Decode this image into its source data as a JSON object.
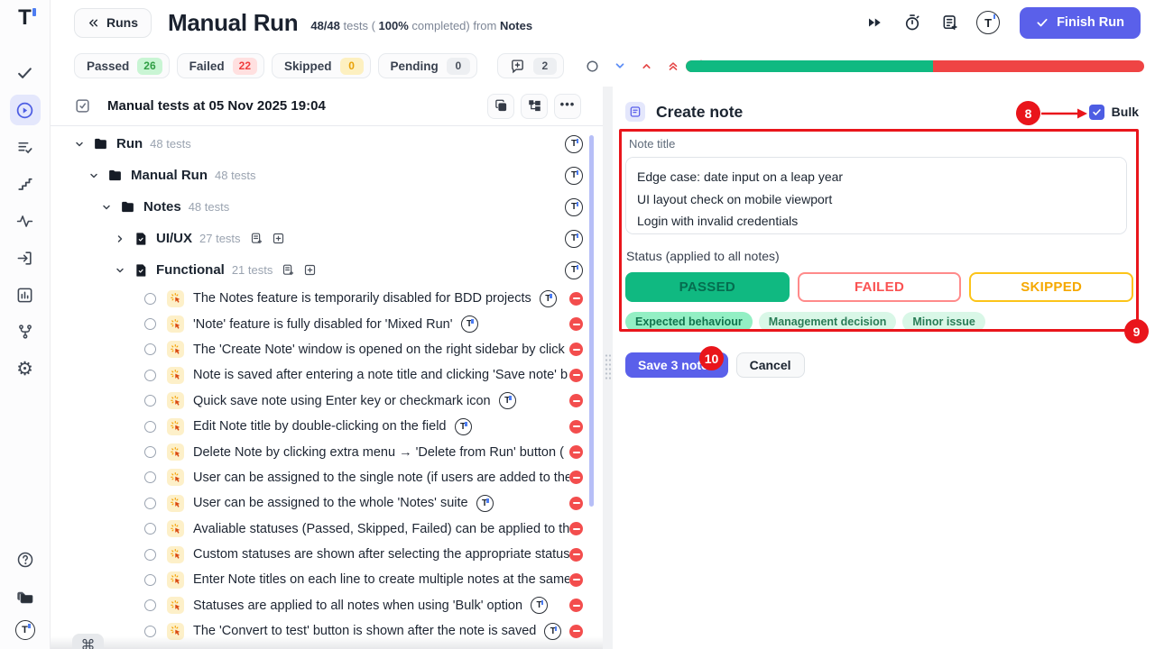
{
  "colors": {
    "accent": "#5a60ea",
    "passed_green": "#10b981",
    "failed_red": "#ef4444",
    "annotation_red": "#e9151b"
  },
  "header": {
    "back_label": "Runs",
    "title": "Manual Run",
    "stats": {
      "count": "48/48",
      "tests_word": "tests (",
      "percent": "100%",
      "completed_word": "completed) from",
      "source": "Notes"
    },
    "finish_label": "Finish Run"
  },
  "filters": [
    {
      "label": "Passed",
      "count": "26",
      "kind": "passed"
    },
    {
      "label": "Failed",
      "count": "22",
      "kind": "failed"
    },
    {
      "label": "Skipped",
      "count": "0",
      "kind": "skipped"
    },
    {
      "label": "Pending",
      "count": "0",
      "kind": "pending"
    }
  ],
  "comment_count": "2",
  "progress": {
    "passed_percent": 54,
    "failed_percent": 46
  },
  "tree": {
    "title": "Manual tests at 05 Nov 2025 19:04",
    "suites": {
      "run": {
        "label": "Run",
        "count": "48 tests"
      },
      "manual_run": {
        "label": "Manual Run",
        "count": "48 tests"
      },
      "notes": {
        "label": "Notes",
        "count": "48 tests"
      },
      "uiux": {
        "label": "UI/UX",
        "count": "27 tests"
      },
      "functional": {
        "label": "Functional",
        "count": "21 tests"
      }
    },
    "tests": [
      {
        "label": "The Notes feature is temporarily disabled for BDD projects",
        "logo": true
      },
      {
        "label": "'Note' feature is fully disabled for 'Mixed Run'",
        "logo": true
      },
      {
        "label": "The 'Create Note' window is opened on the right sidebar by click",
        "logo": false
      },
      {
        "label": "Note is saved after entering a note title and clicking 'Save note' b",
        "logo": false
      },
      {
        "label": "Quick save note using Enter key or checkmark icon",
        "logo": true
      },
      {
        "label": "Edit Note title by double-clicking on the field",
        "logo": true
      },
      {
        "label": "Delete Note by clicking extra menu → 'Delete from Run' button  (",
        "logo": false
      },
      {
        "label": "User can be assigned to the single note (if users are added to the",
        "logo": false
      },
      {
        "label": "User can be assigned to the whole 'Notes' suite",
        "logo": true
      },
      {
        "label": "Avaliable statuses (Passed, Skipped, Failed) can be applied to the",
        "logo": false
      },
      {
        "label": "Custom statuses are shown after selecting the appropriate status",
        "logo": false
      },
      {
        "label": "Enter Note titles on each line to create multiple notes at the same",
        "logo": false
      },
      {
        "label": "Statuses are applied to all notes when using 'Bulk' option",
        "logo": true
      },
      {
        "label": "The 'Convert to test' button is shown after the note is saved",
        "logo": true
      }
    ]
  },
  "note_panel": {
    "title": "Create note",
    "bulk_label": "Bulk",
    "note_title_label": "Note title",
    "note_text": "Edge case: date input on a leap year\nUI layout check on mobile viewport\nLogin with invalid credentials",
    "status_label": "Status (applied to all notes)",
    "statuses": [
      {
        "label": "PASSED",
        "kind": "passed"
      },
      {
        "label": "FAILED",
        "kind": "failed"
      },
      {
        "label": "SKIPPED",
        "kind": "skipped"
      }
    ],
    "tags": [
      {
        "label": "Expected behaviour",
        "kind": "strong"
      },
      {
        "label": "Management decision",
        "kind": "light"
      },
      {
        "label": "Minor issue",
        "kind": "light"
      }
    ],
    "save_label": "Save 3 notes",
    "cancel_label": "Cancel"
  },
  "annotations": {
    "bulk_marker": "8",
    "form_marker": "9",
    "save_marker": "10"
  },
  "shortcut_key": "⌘"
}
